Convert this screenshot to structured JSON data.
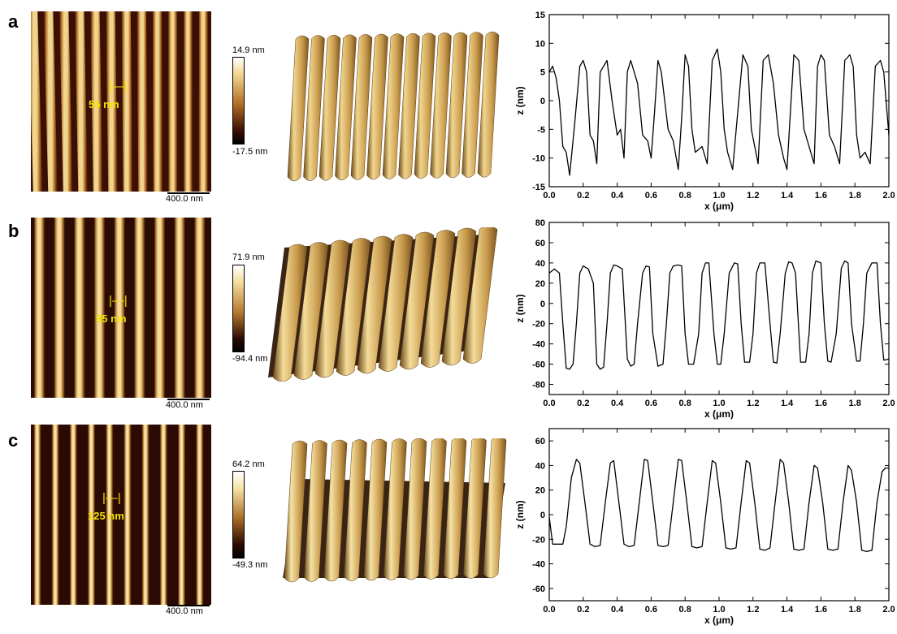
{
  "panels": [
    {
      "letter": "a",
      "measure": "55 nm",
      "scale": "400.0 nm",
      "cmax": "14.9 nm",
      "cmin": "-17.5 nm",
      "stripes": 12,
      "colors": {
        "dark": "#3a0f06",
        "mid": "#b06a22",
        "light": "#f1d58e"
      }
    },
    {
      "letter": "b",
      "measure": "95 nm",
      "scale": "400.0 nm",
      "cmax": "71.9 nm",
      "cmin": "-94.4 nm",
      "stripes": 9,
      "colors": {
        "dark": "#2b0c04",
        "mid": "#b5782e",
        "light": "#f4dc9a"
      }
    },
    {
      "letter": "c",
      "measure": "125 nm",
      "scale": "400.0 nm",
      "cmax": "64.2 nm",
      "cmin": "-49.3 nm",
      "stripes": 10,
      "colors": {
        "dark": "#2a0a02",
        "mid": "#a86a22",
        "light": "#f6e2a4"
      }
    }
  ],
  "chart_data": [
    {
      "type": "line",
      "xlabel": "x (μm)",
      "ylabel": "z (nm)",
      "xlim": [
        0,
        2.0
      ],
      "ylim": [
        -15,
        15
      ],
      "xticks": [
        "0.0",
        "0.2",
        "0.4",
        "0.6",
        "0.8",
        "1.0",
        "1.2",
        "1.4",
        "1.6",
        "1.8",
        "2.0"
      ],
      "yticks": [
        "-15",
        "-10",
        "-5",
        "0",
        "5",
        "10",
        "15"
      ],
      "series": [
        {
          "x": [
            0.0,
            0.02,
            0.04,
            0.06,
            0.08,
            0.1,
            0.12,
            0.15,
            0.18,
            0.2,
            0.22,
            0.24,
            0.26,
            0.28,
            0.3,
            0.34,
            0.37,
            0.4,
            0.42,
            0.44,
            0.46,
            0.48,
            0.52,
            0.55,
            0.58,
            0.6,
            0.62,
            0.64,
            0.66,
            0.7,
            0.73,
            0.76,
            0.78,
            0.8,
            0.82,
            0.84,
            0.86,
            0.9,
            0.93,
            0.96,
            0.99,
            1.01,
            1.03,
            1.05,
            1.08,
            1.11,
            1.14,
            1.17,
            1.19,
            1.21,
            1.23,
            1.26,
            1.29,
            1.32,
            1.35,
            1.38,
            1.4,
            1.42,
            1.44,
            1.47,
            1.5,
            1.53,
            1.56,
            1.58,
            1.6,
            1.62,
            1.65,
            1.68,
            1.71,
            1.74,
            1.77,
            1.79,
            1.81,
            1.83,
            1.86,
            1.89,
            1.92,
            1.95,
            1.97,
            2.0
          ],
          "y": [
            5,
            6,
            4,
            0,
            -8,
            -9,
            -13,
            -4,
            6,
            7,
            5,
            -6,
            -7,
            -11,
            5,
            7,
            0,
            -6,
            -5,
            -10,
            5,
            7,
            3,
            -6,
            -7,
            -10,
            -2,
            7,
            5,
            -5,
            -7,
            -12,
            -3,
            8,
            6,
            -5,
            -9,
            -8,
            -11,
            7,
            9,
            5,
            -5,
            -9,
            -12,
            -2,
            8,
            6,
            -5,
            -8,
            -11,
            7,
            8,
            3,
            -6,
            -10,
            -12,
            -2,
            8,
            7,
            -5,
            -8,
            -11,
            6,
            8,
            7,
            -6,
            -8,
            -11,
            7,
            8,
            6,
            -6,
            -10,
            -9,
            -11,
            6,
            7,
            5,
            -6
          ]
        }
      ]
    },
    {
      "type": "line",
      "xlabel": "x (μm)",
      "ylabel": "z (nm)",
      "xlim": [
        0,
        2.0
      ],
      "ylim": [
        -90,
        80
      ],
      "xticks": [
        "0.0",
        "0.2",
        "0.4",
        "0.6",
        "0.8",
        "1.0",
        "1.2",
        "1.4",
        "1.6",
        "1.8",
        "2.0"
      ],
      "yticks": [
        "-80",
        "-60",
        "-40",
        "-20",
        "0",
        "20",
        "40",
        "60",
        "80"
      ],
      "series": [
        {
          "x": [
            0.0,
            0.03,
            0.06,
            0.08,
            0.1,
            0.12,
            0.14,
            0.16,
            0.18,
            0.2,
            0.23,
            0.26,
            0.28,
            0.3,
            0.32,
            0.34,
            0.36,
            0.38,
            0.4,
            0.43,
            0.46,
            0.48,
            0.5,
            0.52,
            0.55,
            0.57,
            0.59,
            0.61,
            0.64,
            0.67,
            0.69,
            0.71,
            0.73,
            0.76,
            0.78,
            0.8,
            0.82,
            0.85,
            0.88,
            0.9,
            0.92,
            0.94,
            0.97,
            0.99,
            1.01,
            1.03,
            1.06,
            1.09,
            1.11,
            1.13,
            1.15,
            1.18,
            1.2,
            1.22,
            1.24,
            1.27,
            1.3,
            1.32,
            1.34,
            1.36,
            1.39,
            1.41,
            1.43,
            1.45,
            1.48,
            1.51,
            1.53,
            1.55,
            1.57,
            1.6,
            1.62,
            1.64,
            1.66,
            1.69,
            1.72,
            1.74,
            1.76,
            1.78,
            1.81,
            1.83,
            1.85,
            1.87,
            1.9,
            1.93,
            1.95,
            1.97,
            2.0
          ],
          "y": [
            30,
            34,
            30,
            -20,
            -64,
            -65,
            -60,
            -20,
            30,
            37,
            34,
            20,
            -60,
            -65,
            -63,
            -20,
            30,
            38,
            37,
            34,
            -55,
            -62,
            -60,
            -20,
            30,
            37,
            36,
            -30,
            -62,
            -60,
            -20,
            30,
            37,
            38,
            37,
            -30,
            -60,
            -60,
            -30,
            30,
            40,
            40,
            -30,
            -60,
            -60,
            -30,
            30,
            40,
            39,
            -20,
            -58,
            -58,
            -30,
            30,
            40,
            40,
            -20,
            -58,
            -59,
            -30,
            30,
            41,
            40,
            30,
            -58,
            -58,
            -30,
            30,
            42,
            40,
            -20,
            -57,
            -58,
            -30,
            35,
            42,
            40,
            -20,
            -57,
            -57,
            -20,
            30,
            40,
            40,
            -20,
            -56,
            -55
          ]
        }
      ]
    },
    {
      "type": "line",
      "xlabel": "x (μm)",
      "ylabel": "z (nm)",
      "xlim": [
        0,
        2.0
      ],
      "ylim": [
        -70,
        70
      ],
      "xticks": [
        "0.0",
        "0.2",
        "0.4",
        "0.6",
        "0.8",
        "1.0",
        "1.2",
        "1.4",
        "1.6",
        "1.8",
        "2.0"
      ],
      "yticks": [
        "-60",
        "-40",
        "-20",
        "0",
        "20",
        "40",
        "60"
      ],
      "series": [
        {
          "x": [
            0.0,
            0.02,
            0.05,
            0.08,
            0.1,
            0.13,
            0.16,
            0.18,
            0.21,
            0.24,
            0.27,
            0.3,
            0.33,
            0.36,
            0.38,
            0.41,
            0.44,
            0.47,
            0.5,
            0.53,
            0.56,
            0.58,
            0.61,
            0.64,
            0.67,
            0.7,
            0.73,
            0.76,
            0.78,
            0.81,
            0.84,
            0.87,
            0.9,
            0.93,
            0.96,
            0.98,
            1.01,
            1.04,
            1.07,
            1.1,
            1.13,
            1.16,
            1.18,
            1.21,
            1.24,
            1.27,
            1.3,
            1.33,
            1.36,
            1.38,
            1.41,
            1.44,
            1.47,
            1.5,
            1.53,
            1.56,
            1.58,
            1.61,
            1.64,
            1.67,
            1.7,
            1.73,
            1.76,
            1.78,
            1.81,
            1.84,
            1.87,
            1.9,
            1.93,
            1.96,
            1.98,
            2.0
          ],
          "y": [
            -2,
            -24,
            -24,
            -24,
            -10,
            30,
            45,
            42,
            10,
            -24,
            -26,
            -25,
            10,
            42,
            44,
            10,
            -24,
            -26,
            -25,
            10,
            45,
            44,
            10,
            -25,
            -26,
            -25,
            10,
            45,
            44,
            10,
            -26,
            -27,
            -26,
            10,
            44,
            42,
            10,
            -27,
            -28,
            -27,
            10,
            44,
            42,
            10,
            -28,
            -29,
            -27,
            10,
            45,
            42,
            10,
            -28,
            -29,
            -28,
            10,
            40,
            38,
            10,
            -28,
            -29,
            -28,
            10,
            40,
            36,
            10,
            -29,
            -30,
            -29,
            10,
            35,
            38,
            38
          ]
        }
      ]
    }
  ]
}
